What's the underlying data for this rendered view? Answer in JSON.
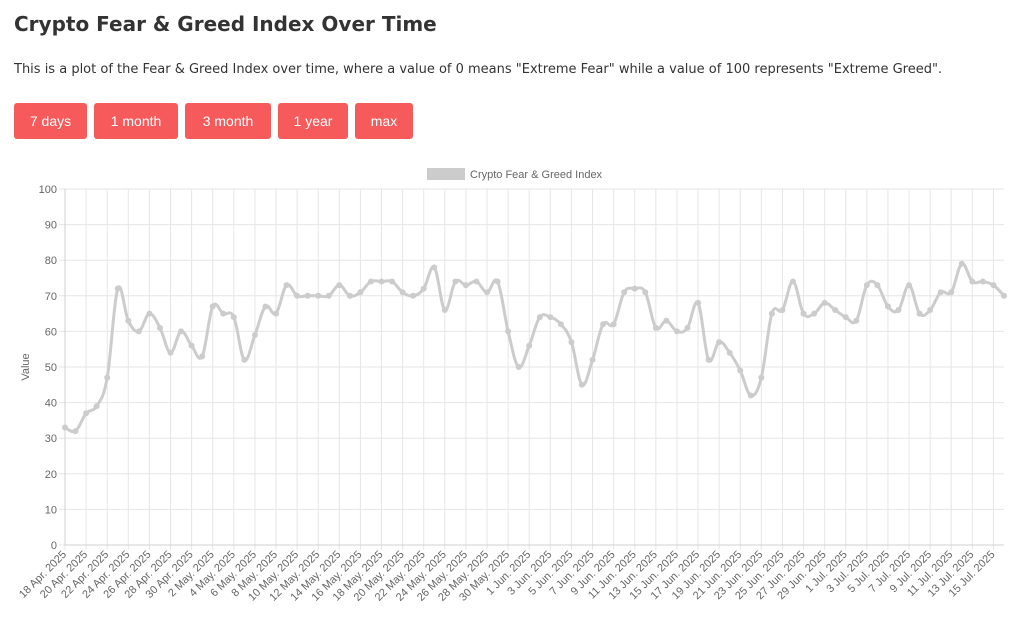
{
  "page": {
    "title": "Crypto Fear & Greed Index Over Time",
    "description": "This is a plot of the Fear & Greed Index over time, where a value of 0 means \"Extreme Fear\" while a value of 100 represents \"Extreme Greed\"."
  },
  "buttons": [
    {
      "label": "7 days"
    },
    {
      "label": "1 month"
    },
    {
      "label": "3 month"
    },
    {
      "label": "1 year"
    },
    {
      "label": "max"
    }
  ],
  "colors": {
    "button_bg": "#f65a5b",
    "line": "#cccccc",
    "grid": "#e6e6e6"
  },
  "chart_data": {
    "type": "line",
    "title": "",
    "xlabel": "",
    "ylabel": "Value",
    "ylim": [
      0,
      100
    ],
    "yticks": [
      0,
      10,
      20,
      30,
      40,
      50,
      60,
      70,
      80,
      90,
      100
    ],
    "grid": true,
    "legend_position": "top",
    "x": [
      "18 Apr. 2025",
      "19 Apr. 2025",
      "20 Apr. 2025",
      "21 Apr. 2025",
      "22 Apr. 2025",
      "23 Apr. 2025",
      "24 Apr. 2025",
      "25 Apr. 2025",
      "26 Apr. 2025",
      "27 Apr. 2025",
      "28 Apr. 2025",
      "29 Apr. 2025",
      "30 Apr. 2025",
      "1 May. 2025",
      "2 May. 2025",
      "3 May. 2025",
      "4 May. 2025",
      "5 May. 2025",
      "6 May. 2025",
      "7 May. 2025",
      "8 May. 2025",
      "9 May. 2025",
      "10 May. 2025",
      "11 May. 2025",
      "12 May. 2025",
      "13 May. 2025",
      "14 May. 2025",
      "15 May. 2025",
      "16 May. 2025",
      "17 May. 2025",
      "18 May. 2025",
      "19 May. 2025",
      "20 May. 2025",
      "21 May. 2025",
      "22 May. 2025",
      "23 May. 2025",
      "24 May. 2025",
      "25 May. 2025",
      "26 May. 2025",
      "27 May. 2025",
      "28 May. 2025",
      "29 May. 2025",
      "30 May. 2025",
      "31 May. 2025",
      "1 Jun. 2025",
      "2 Jun. 2025",
      "3 Jun. 2025",
      "4 Jun. 2025",
      "5 Jun. 2025",
      "6 Jun. 2025",
      "7 Jun. 2025",
      "8 Jun. 2025",
      "9 Jun. 2025",
      "10 Jun. 2025",
      "11 Jun. 2025",
      "12 Jun. 2025",
      "13 Jun. 2025",
      "14 Jun. 2025",
      "15 Jun. 2025",
      "16 Jun. 2025",
      "17 Jun. 2025",
      "18 Jun. 2025",
      "19 Jun. 2025",
      "20 Jun. 2025",
      "21 Jun. 2025",
      "22 Jun. 2025",
      "23 Jun. 2025",
      "24 Jun. 2025",
      "25 Jun. 2025",
      "26 Jun. 2025",
      "27 Jun. 2025",
      "28 Jun. 2025",
      "29 Jun. 2025",
      "30 Jun. 2025",
      "1 Jul. 2025",
      "2 Jul. 2025",
      "3 Jul. 2025",
      "4 Jul. 2025",
      "5 Jul. 2025",
      "6 Jul. 2025",
      "7 Jul. 2025",
      "8 Jul. 2025",
      "9 Jul. 2025",
      "10 Jul. 2025",
      "11 Jul. 2025",
      "12 Jul. 2025",
      "13 Jul. 2025",
      "14 Jul. 2025",
      "15 Jul. 2025",
      "16 Jul. 2025"
    ],
    "x_tick_labels": [
      "18 Apr. 2025",
      "20 Apr. 2025",
      "22 Apr. 2025",
      "24 Apr. 2025",
      "26 Apr. 2025",
      "28 Apr. 2025",
      "30 Apr. 2025",
      "2 May. 2025",
      "4 May. 2025",
      "6 May. 2025",
      "8 May. 2025",
      "10 May. 2025",
      "12 May. 2025",
      "14 May. 2025",
      "16 May. 2025",
      "18 May. 2025",
      "20 May. 2025",
      "22 May. 2025",
      "24 May. 2025",
      "26 May. 2025",
      "28 May. 2025",
      "30 May. 2025",
      "1 Jun. 2025",
      "3 Jun. 2025",
      "5 Jun. 2025",
      "7 Jun. 2025",
      "9 Jun. 2025",
      "11 Jun. 2025",
      "13 Jun. 2025",
      "15 Jun. 2025",
      "17 Jun. 2025",
      "19 Jun. 2025",
      "21 Jun. 2025",
      "23 Jun. 2025",
      "25 Jun. 2025",
      "27 Jun. 2025",
      "29 Jun. 2025",
      "1 Jul. 2025",
      "3 Jul. 2025",
      "5 Jul. 2025",
      "7 Jul. 2025",
      "9 Jul. 2025",
      "11 Jul. 2025",
      "13 Jul. 2025",
      "15 Jul. 2025"
    ],
    "series": [
      {
        "name": "Crypto Fear & Greed Index",
        "values": [
          33,
          32,
          37,
          39,
          47,
          72,
          63,
          60,
          65,
          61,
          54,
          60,
          56,
          53,
          67,
          65,
          64,
          52,
          59,
          67,
          65,
          73,
          70,
          70,
          70,
          70,
          73,
          70,
          71,
          74,
          74,
          74,
          71,
          70,
          72,
          78,
          66,
          74,
          73,
          74,
          71,
          74,
          60,
          50,
          56,
          64,
          64,
          62,
          57,
          45,
          52,
          62,
          62,
          71,
          72,
          71,
          61,
          63,
          60,
          61,
          68,
          52,
          57,
          54,
          49,
          42,
          47,
          65,
          66,
          74,
          65,
          65,
          68,
          66,
          64,
          63,
          73,
          73,
          67,
          66,
          73,
          65,
          66,
          71,
          71,
          79,
          74,
          74,
          73,
          70
        ]
      }
    ]
  }
}
